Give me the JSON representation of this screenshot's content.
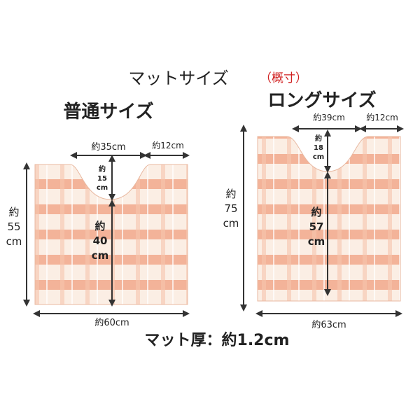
{
  "title": "マットサイズ",
  "note": "（概寸）",
  "thickness": "マット厚：約1.2cm",
  "mats": [
    {
      "name": "普通サイズ",
      "cutout_width": "約35cm",
      "side_width": "約12cm",
      "cutout_depth": [
        "約",
        "15",
        "cm"
      ],
      "inner_height": [
        "約",
        "40",
        "cm"
      ],
      "height": [
        "約",
        "55",
        "cm"
      ],
      "width": "約60cm"
    },
    {
      "name": "ロングサイズ",
      "cutout_width": "約39cm",
      "side_width": "約12cm",
      "cutout_depth": [
        "約",
        "18",
        "cm"
      ],
      "inner_height": [
        "約",
        "57",
        "cm"
      ],
      "height": [
        "約",
        "75",
        "cm"
      ],
      "width": "約63cm"
    }
  ]
}
